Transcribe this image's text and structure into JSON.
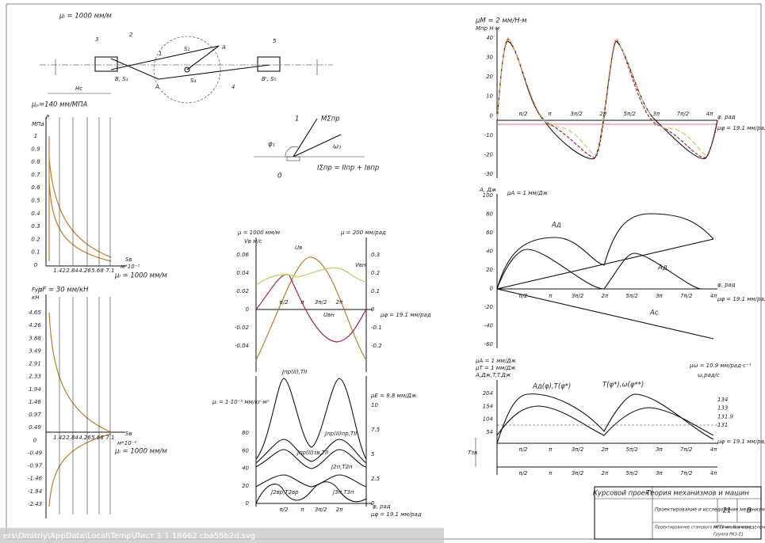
{
  "sheet": {
    "mechanism": {
      "scale": "μₗ = 1000 мм/м",
      "links": [
        "1",
        "2",
        "3",
        "4",
        "5"
      ],
      "points": [
        "A",
        "A",
        "B, S₃",
        "B', S₅",
        "S₂",
        "S₄",
        "Hс"
      ]
    },
    "moment_sketch": {
      "labels": [
        "φ₁",
        "ω₁",
        "MΣпр",
        "IΣпр = IIпр + Iвпр",
        "1",
        "0"
      ]
    },
    "pressure": {
      "scale": "μₚ=140 мм/МПА",
      "axis": "P",
      "unit": "МПа",
      "yticks": [
        "1",
        "0.9",
        "0.8",
        "0.7",
        "0.6",
        "0.5",
        "0.4",
        "0.3",
        "0.2",
        "0.1",
        "0"
      ],
      "xticks": [
        "1.42",
        "2.84",
        "4.26",
        "5.68",
        "7.1"
      ],
      "x_axis": "Sв",
      "x_unit": "м*10⁻²",
      "x_scale": "μₗ = 1000 мм/м"
    },
    "force": {
      "scale": "μF = 30 мм/кН",
      "axis": "Fуп",
      "unit": "кН",
      "yticks": [
        "4.65",
        "4.26",
        "3.88",
        "3.49",
        "2.91",
        "2.33",
        "1.94",
        "1.46",
        "0.97",
        "0.49",
        "0",
        "-0.49",
        "-0.97",
        "-1.46",
        "-1.94",
        "-2.43"
      ],
      "xticks": [
        "1.42",
        "2.84",
        "4.26",
        "5.68",
        "7.1"
      ],
      "x_axis": "Sв",
      "x_unit": "м*10⁻²",
      "x_scale": "μₗ = 1000 мм/м"
    },
    "velocity": {
      "scale_left": "μ = 1000 мм/м",
      "scale_right": "μ = 200 мм/рад",
      "axis": "Vв м/с",
      "yticks_left": [
        "0.06",
        "0.04",
        "0.02",
        "0",
        "-0.02",
        "-0.04"
      ],
      "yticks_right": [
        "0.3",
        "0.2",
        "0.1",
        "0",
        "-0.1",
        "-0.2"
      ],
      "xticks": [
        "π/2",
        "π",
        "3π/2",
        "2π"
      ],
      "x_scale": "μφ = 19.1 мм/рад",
      "curves": [
        "Uв",
        "Vвн",
        "Uвн"
      ]
    },
    "inertia": {
      "scale_left": "μᵢ = 1·10⁻⁵ мм/кг·м²",
      "scale_right": "μE = 9.8 мм/Дж",
      "yticks_left": [
        "80",
        "60",
        "40",
        "20",
        "0"
      ],
      "yticks_right": [
        "10",
        "7.5",
        "5",
        "2.5",
        "0"
      ],
      "xticks": [
        "π/2",
        "π",
        "3π/2",
        "2π"
      ],
      "x_axis": "φ, рад",
      "x_scale": "μφ = 19.1 мм/рад",
      "curves": [
        "Jпр(II),TII",
        "Jпр(II)пр,TII",
        "Jпр(II)зв,TII",
        "J2п,T2п",
        "J2вр,T2вр",
        "J3п,T3п"
      ]
    },
    "moment": {
      "scale": "μM = 2 мм/Н·м",
      "axis": "Mпр Н·м",
      "yticks": [
        "40",
        "30",
        "20",
        "10",
        "0",
        "-10",
        "-20",
        "-30"
      ],
      "xticks": [
        "π/2",
        "π",
        "3π/2",
        "2π",
        "5π/2",
        "3π",
        "7π/2",
        "4π"
      ],
      "x_axis": "φ, рад",
      "x_scale": "μφ = 19.1 мм/рад"
    },
    "work": {
      "axis": "A, Дж",
      "scale": "μA = 1 мм/Дж",
      "yticks": [
        "100",
        "80",
        "60",
        "40",
        "20",
        "0",
        "-20",
        "-40",
        "-60"
      ],
      "xticks": [
        "π/2",
        "π",
        "3π/2",
        "2π",
        "5π/2",
        "3π",
        "7π/2",
        "4π"
      ],
      "x_axis": "φ, рад",
      "x_scale": "μφ = 19.1 мм/рад",
      "curves": [
        "Aд",
        "Aд",
        "Aс"
      ]
    },
    "energy": {
      "scale_a": "μA = 1 мм/Дж",
      "scale_t": "μT = 1 мм/Дж",
      "axis": "A,Дж,T,T.Дж",
      "scale_w": "μω = 10.9 мм/рад·с⁻¹",
      "w_axis": "ω,рад/с",
      "yticks": [
        "204",
        "154",
        "104",
        "54"
      ],
      "yticks_right": [
        "134",
        "133",
        "131.9",
        "131"
      ],
      "xticks": [
        "π/2",
        "π",
        "3π/2",
        "2π",
        "5π/2",
        "3π",
        "7π/2",
        "4π"
      ],
      "x_scale": "μφ = 19.1 мм/рад",
      "curves": [
        "Aд(φ),T(φ*)",
        "T(φ*),ω(φ**)"
      ],
      "t_label": "Tзв"
    },
    "title_block": {
      "project": "Курсовой проект",
      "subject": "Теория механизмов и машин",
      "title": "Проектирование и исследование механизмов автомобиля повышенной проходимости",
      "sheet_no": "21",
      "letter": "В",
      "sheet_title": "Проектирование станового механизма и определение закона движения",
      "org": "МГТУ им. Баумана",
      "group": "Группа РК3-51"
    },
    "status_path": "ers\\Dmitriy\\AppData\\Local\\Temp\\Лист 1 1 18662 cba55b2d.svg"
  }
}
